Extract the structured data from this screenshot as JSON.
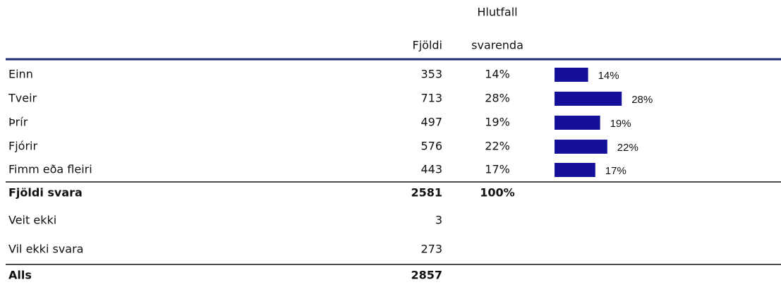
{
  "header": {
    "count": "Fjöldi",
    "share": [
      "Hlutfall",
      "svarenda"
    ]
  },
  "rows": [
    {
      "label": "Einn",
      "count": 353,
      "share": {
        "value": 14,
        "label": "14%"
      }
    },
    {
      "label": "Tveir",
      "count": 713,
      "share": {
        "value": 28,
        "label": "28%"
      }
    },
    {
      "label": "Þrír",
      "count": 497,
      "share": {
        "value": 19,
        "label": "19%"
      }
    },
    {
      "label": "Fjórir",
      "count": 576,
      "share": {
        "value": 22,
        "label": "22%"
      }
    },
    {
      "label": "Fimm eða fleiri",
      "count": 443,
      "share": {
        "value": 17,
        "label": "17%"
      }
    }
  ],
  "total": {
    "label": "Fjöldi svara",
    "count": 2581,
    "share": "100%"
  },
  "other": [
    {
      "label": "Veit ekki",
      "count": 3
    },
    {
      "label": "Vil ekki svara",
      "count": 273
    }
  ],
  "grand_total": {
    "label": "Alls",
    "count": 2857
  },
  "bar_color": "#15109a",
  "rule_color": "#1f2a78"
}
